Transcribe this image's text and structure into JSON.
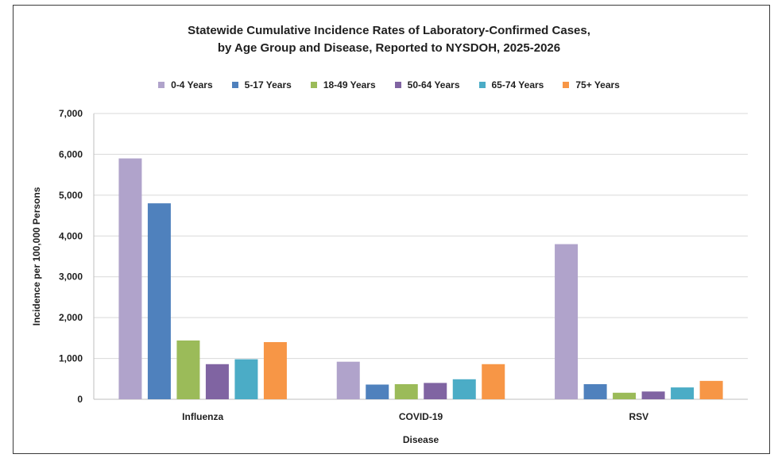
{
  "chart_data": {
    "type": "bar",
    "title": "Statewide Cumulative Incidence Rates of Laboratory-Confirmed  Cases,",
    "subtitle": "by Age Group and Disease, Reported to NYSDOH, 2025-2026",
    "xlabel": "Disease",
    "ylabel": "Incidence per 100,000 Persons",
    "categories": [
      "Influenza",
      "COVID-19",
      "RSV"
    ],
    "yticks": [
      "0",
      "1,000",
      "2,000",
      "3,000",
      "4,000",
      "5,000",
      "6,000",
      "7,000"
    ],
    "ylim": [
      0,
      7000
    ],
    "grid": true,
    "legend_position": "top",
    "series": [
      {
        "name": "0-4 Years",
        "color": "#b0a3cb",
        "values": [
          5900,
          920,
          3800
        ]
      },
      {
        "name": "5-17 Years",
        "color": "#4f81bd",
        "values": [
          4800,
          360,
          370
        ]
      },
      {
        "name": "18-49 Years",
        "color": "#9bbb59",
        "values": [
          1440,
          370,
          160
        ]
      },
      {
        "name": "50-64 Years",
        "color": "#8064a2",
        "values": [
          860,
          400,
          190
        ]
      },
      {
        "name": "65-74 Years",
        "color": "#4bacc6",
        "values": [
          980,
          490,
          290
        ]
      },
      {
        "name": "75+ Years",
        "color": "#f79646",
        "values": [
          1400,
          860,
          450
        ]
      }
    ]
  }
}
